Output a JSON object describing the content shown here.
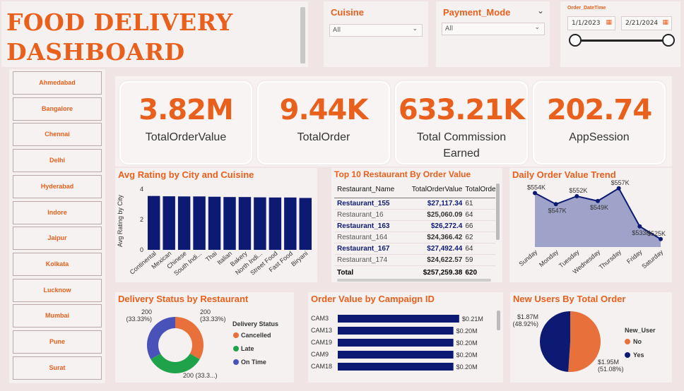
{
  "header": {
    "title_line1": "FOOD DELIVERY",
    "title_line2": "DASHBOARD"
  },
  "slicers": {
    "cuisine": {
      "label": "Cuisine",
      "value": "All"
    },
    "payment_mode": {
      "label": "Payment_Mode",
      "value": "All"
    },
    "order_datetime": {
      "label": "Order_DateTime",
      "start": "1/1/2023",
      "end": "2/21/2024"
    }
  },
  "cities": [
    "Ahmedabad",
    "Bangalore",
    "Chennai",
    "Delhi",
    "Hyderabad",
    "Indore",
    "Jaipur",
    "Kolkata",
    "Lucknow",
    "Mumbai",
    "Pune",
    "Surat"
  ],
  "kpis": [
    {
      "value": "3.82M",
      "label": "TotalOrderValue"
    },
    {
      "value": "9.44K",
      "label": "TotalOrder"
    },
    {
      "value": "633.21K",
      "label": "Total Commission Earned"
    },
    {
      "value": "202.74",
      "label": "AppSession"
    }
  ],
  "top10": {
    "title": "Top 10 Restaurant By Order Value",
    "columns": [
      "Restaurant_Name",
      "TotalOrderValue",
      "TotalOrder"
    ],
    "rows": [
      {
        "name": "Restaurant_155",
        "value": "$27,117.34",
        "orders": "61"
      },
      {
        "name": "Restaurant_16",
        "value": "$25,060.09",
        "orders": "64"
      },
      {
        "name": "Restaurant_163",
        "value": "$26,272.4",
        "orders": "66"
      },
      {
        "name": "Restaurant_164",
        "value": "$24,366.42",
        "orders": "62"
      },
      {
        "name": "Restaurant_167",
        "value": "$27,492.44",
        "orders": "64"
      },
      {
        "name": "Restaurant_174",
        "value": "$24,622.57",
        "orders": "59"
      }
    ],
    "total": {
      "label": "Total",
      "value": "$257,259.38",
      "orders": "620"
    }
  },
  "chart_data": [
    {
      "type": "bar",
      "title": "Avg Rating by City and Cuisine",
      "ylabel": "Avg Rating by City",
      "ylim": [
        0,
        4
      ],
      "yticks": [
        "0",
        "2",
        "4"
      ],
      "categories": [
        "Continental",
        "Mexican",
        "Chinese",
        "South Indi...",
        "Thai",
        "Italian",
        "Bakery",
        "North Indi...",
        "Street Food",
        "Fast Food",
        "Biryani"
      ],
      "values": [
        3.55,
        3.53,
        3.52,
        3.52,
        3.5,
        3.48,
        3.48,
        3.46,
        3.45,
        3.45,
        3.42
      ],
      "color": "#0d1a73"
    },
    {
      "type": "area",
      "title": "Daily Order Value Trend",
      "categories": [
        "Sunday",
        "Monday",
        "Tuesday",
        "Wednesday",
        "Thursday",
        "Friday",
        "Saturday"
      ],
      "values": [
        554,
        547,
        552,
        549,
        557,
        533,
        525
      ],
      "labels": [
        "$554K",
        "$547K",
        "$552K",
        "$549K",
        "$557K",
        "$533K",
        "$525K"
      ],
      "ylim": [
        520,
        560
      ],
      "color": "#0d1a73"
    },
    {
      "type": "pie",
      "title": "Delivery Status by Restaurant",
      "legend_title": "Delivery Status",
      "slices": [
        {
          "name": "Cancelled",
          "value": 200,
          "label": "200 (33.33%)",
          "color": "#e8703a"
        },
        {
          "name": "Late",
          "value": 200,
          "label": "200 (33.3...)",
          "color": "#1fa34a"
        },
        {
          "name": "On Time",
          "value": 200,
          "label": "200 (33.33%)",
          "color": "#4852b8"
        }
      ]
    },
    {
      "type": "bar",
      "title": "Order Value by Campaign ID",
      "categories": [
        "CAM3",
        "CAM13",
        "CAM19",
        "CAM9",
        "CAM18"
      ],
      "values": [
        0.21,
        0.2,
        0.2,
        0.2,
        0.2
      ],
      "labels": [
        "$0.21M",
        "$0.20M",
        "$0.20M",
        "$0.20M",
        "$0.20M"
      ],
      "xlim": [
        0,
        0.22
      ],
      "color": "#0d1a73"
    },
    {
      "type": "pie",
      "title": "New Users By Total Order",
      "legend_title": "New_User",
      "slices": [
        {
          "name": "No",
          "value": 1.95,
          "label_value": "$1.95M",
          "label_pct": "(51.08%)",
          "color": "#e8703a"
        },
        {
          "name": "Yes",
          "value": 1.87,
          "label_value": "$1.87M",
          "label_pct": "(48.92%)",
          "color": "#0d1a73"
        }
      ]
    }
  ]
}
